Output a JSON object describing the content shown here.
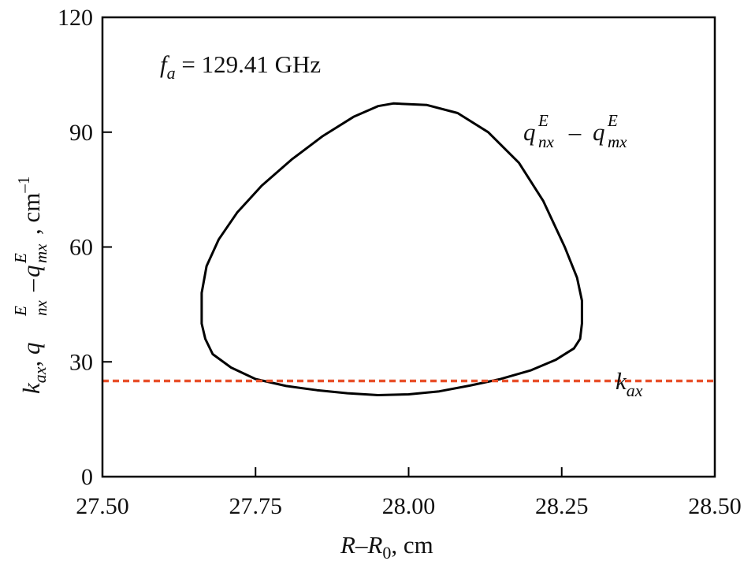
{
  "chart_data": {
    "type": "line",
    "xlim": [
      27.5,
      28.5
    ],
    "ylim": [
      0,
      120
    ],
    "x_ticks": [
      27.5,
      27.75,
      28.0,
      28.25,
      28.5
    ],
    "x_tick_labels": [
      "27.50",
      "27.75",
      "28.00",
      "28.25",
      "28.50"
    ],
    "y_ticks": [
      0,
      30,
      60,
      90,
      120
    ],
    "y_tick_labels": [
      "0",
      "30",
      "60",
      "90",
      "120"
    ],
    "xlabel": {
      "a": "R",
      "dash": "–",
      "b": "R",
      "b_sub": "0",
      "unit": ", cm"
    },
    "ylabel": {
      "k": "k",
      "k_sub": "ax",
      "sep": ", ",
      "q1": "q",
      "q1_sup": "E",
      "q1_sub": "nx",
      "minus": "–",
      "q2": "q",
      "q2_sup": "E",
      "q2_sub": "mx",
      "unit": ", cm",
      "unit_sup": "–1"
    },
    "frequency_annotation": {
      "symbol": "f",
      "sub": "a",
      "text": " = 129.41 GHz"
    },
    "series": [
      {
        "name_parts": {
          "q1": "q",
          "q1_sup": "E",
          "q1_sub": "nx",
          "minus": " – ",
          "q2": "q",
          "q2_sup": "E",
          "q2_sub": "mx"
        },
        "color": "#000000",
        "style": "solid",
        "closed": true,
        "points": [
          [
            27.975,
            97.5
          ],
          [
            28.03,
            97.1
          ],
          [
            28.08,
            95.0
          ],
          [
            28.13,
            90.0
          ],
          [
            28.18,
            82.0
          ],
          [
            28.22,
            72.0
          ],
          [
            28.255,
            60.0
          ],
          [
            28.275,
            52.0
          ],
          [
            28.283,
            46.0
          ],
          [
            28.283,
            40.0
          ],
          [
            28.28,
            36.0
          ],
          [
            28.27,
            33.5
          ],
          [
            28.24,
            30.5
          ],
          [
            28.2,
            27.8
          ],
          [
            28.15,
            25.5
          ],
          [
            28.1,
            23.8
          ],
          [
            28.05,
            22.3
          ],
          [
            28.0,
            21.5
          ],
          [
            27.95,
            21.3
          ],
          [
            27.9,
            21.8
          ],
          [
            27.85,
            22.6
          ],
          [
            27.8,
            23.7
          ],
          [
            27.75,
            25.5
          ],
          [
            27.71,
            28.5
          ],
          [
            27.68,
            32.0
          ],
          [
            27.668,
            36.0
          ],
          [
            27.662,
            40.0
          ],
          [
            27.662,
            48.0
          ],
          [
            27.67,
            55.0
          ],
          [
            27.69,
            62.0
          ],
          [
            27.72,
            69.0
          ],
          [
            27.76,
            76.0
          ],
          [
            27.81,
            83.0
          ],
          [
            27.86,
            89.0
          ],
          [
            27.91,
            94.0
          ],
          [
            27.95,
            96.8
          ],
          [
            27.975,
            97.5
          ]
        ]
      },
      {
        "name_parts": {
          "k": "k",
          "k_sub": "ax"
        },
        "color": "#E8502A",
        "style": "dashed",
        "closed": false,
        "points": [
          [
            27.5,
            25.0
          ],
          [
            28.5,
            25.0
          ]
        ]
      }
    ]
  }
}
